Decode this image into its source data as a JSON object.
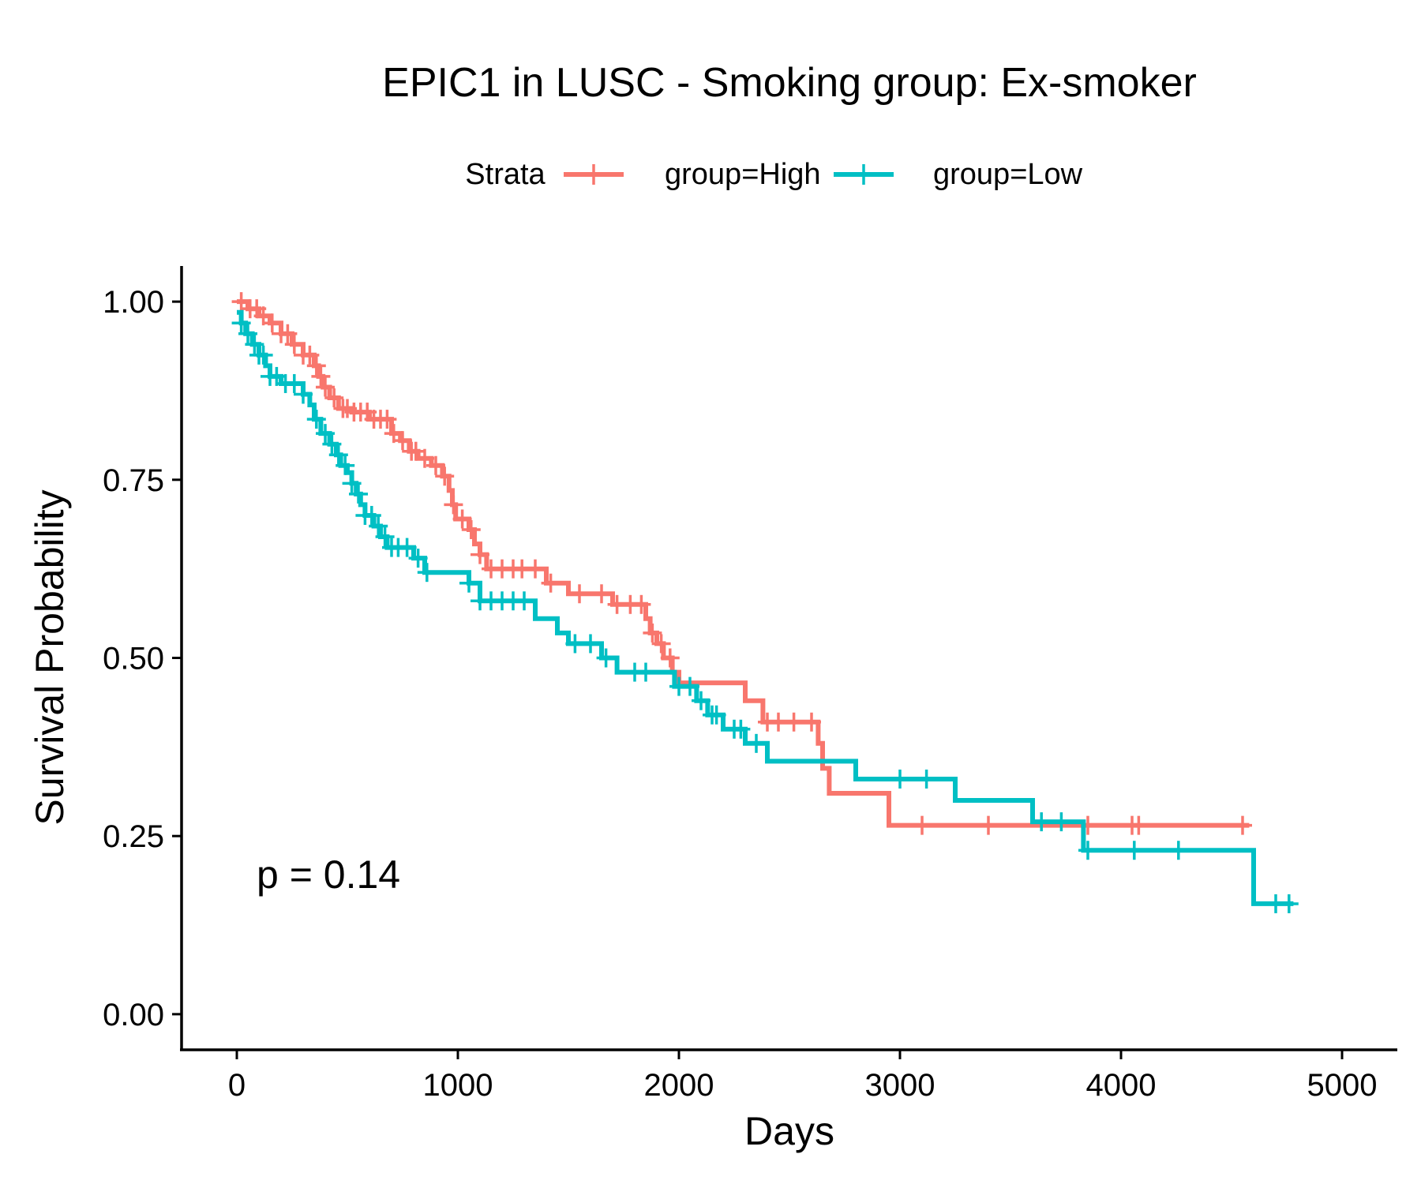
{
  "chart_data": {
    "type": "line",
    "subtype": "kaplan-meier survival curve",
    "title": "EPIC1 in LUSC - Smoking group: Ex-smoker",
    "xlabel": "Days",
    "ylabel": "Survival Probability",
    "xlim": [
      -250,
      5250
    ],
    "ylim": [
      -0.05,
      1.05
    ],
    "x_ticks": [
      0,
      1000,
      2000,
      3000,
      4000,
      5000
    ],
    "x_tick_labels": [
      "0",
      "1000",
      "2000",
      "3000",
      "4000",
      "5000"
    ],
    "y_ticks": [
      0,
      0.25,
      0.5,
      0.75,
      1.0
    ],
    "y_tick_labels": [
      "0.00",
      "0.25",
      "0.50",
      "0.75",
      "1.00"
    ],
    "grid": false,
    "legend": {
      "title": "Strata",
      "position": "top",
      "entries": [
        "group=High",
        "group=Low"
      ]
    },
    "annotation": "p = 0.14",
    "series": [
      {
        "name": "group=High",
        "color": "#F8766D",
        "steps": [
          [
            0,
            1.0
          ],
          [
            50,
            0.99
          ],
          [
            100,
            0.98
          ],
          [
            150,
            0.97
          ],
          [
            200,
            0.955
          ],
          [
            250,
            0.94
          ],
          [
            300,
            0.925
          ],
          [
            350,
            0.91
          ],
          [
            370,
            0.895
          ],
          [
            390,
            0.88
          ],
          [
            420,
            0.865
          ],
          [
            460,
            0.85
          ],
          [
            520,
            0.845
          ],
          [
            600,
            0.835
          ],
          [
            700,
            0.815
          ],
          [
            740,
            0.805
          ],
          [
            780,
            0.79
          ],
          [
            820,
            0.78
          ],
          [
            880,
            0.77
          ],
          [
            930,
            0.755
          ],
          [
            960,
            0.735
          ],
          [
            975,
            0.715
          ],
          [
            990,
            0.695
          ],
          [
            1050,
            0.68
          ],
          [
            1075,
            0.66
          ],
          [
            1100,
            0.645
          ],
          [
            1130,
            0.625
          ],
          [
            1400,
            0.605
          ],
          [
            1500,
            0.59
          ],
          [
            1700,
            0.575
          ],
          [
            1850,
            0.555
          ],
          [
            1870,
            0.535
          ],
          [
            1900,
            0.52
          ],
          [
            1930,
            0.5
          ],
          [
            1970,
            0.48
          ],
          [
            2000,
            0.465
          ],
          [
            2300,
            0.44
          ],
          [
            2380,
            0.41
          ],
          [
            2630,
            0.38
          ],
          [
            2650,
            0.345
          ],
          [
            2680,
            0.31
          ],
          [
            2950,
            0.265
          ]
        ],
        "end_x": 4580,
        "censor_x": [
          20,
          60,
          90,
          120,
          160,
          200,
          230,
          260,
          300,
          330,
          360,
          380,
          400,
          440,
          480,
          500,
          530,
          560,
          590,
          620,
          650,
          680,
          710,
          750,
          790,
          810,
          850,
          900,
          940,
          980,
          1020,
          1060,
          1100,
          1150,
          1200,
          1250,
          1290,
          1350,
          1420,
          1550,
          1650,
          1720,
          1780,
          1830,
          1880,
          1920,
          1960,
          2400,
          2450,
          2520,
          2600,
          3100,
          3400,
          3850,
          4050,
          4080,
          4550
        ]
      },
      {
        "name": "group=Low",
        "color": "#00BFC4",
        "steps": [
          [
            0,
            0.985
          ],
          [
            20,
            0.97
          ],
          [
            40,
            0.955
          ],
          [
            70,
            0.94
          ],
          [
            100,
            0.925
          ],
          [
            130,
            0.91
          ],
          [
            150,
            0.895
          ],
          [
            200,
            0.885
          ],
          [
            300,
            0.87
          ],
          [
            330,
            0.855
          ],
          [
            350,
            0.835
          ],
          [
            380,
            0.815
          ],
          [
            420,
            0.8
          ],
          [
            450,
            0.785
          ],
          [
            470,
            0.77
          ],
          [
            500,
            0.76
          ],
          [
            520,
            0.745
          ],
          [
            540,
            0.73
          ],
          [
            560,
            0.715
          ],
          [
            580,
            0.7
          ],
          [
            620,
            0.685
          ],
          [
            650,
            0.67
          ],
          [
            680,
            0.655
          ],
          [
            800,
            0.64
          ],
          [
            850,
            0.62
          ],
          [
            1050,
            0.605
          ],
          [
            1100,
            0.58
          ],
          [
            1350,
            0.555
          ],
          [
            1450,
            0.535
          ],
          [
            1500,
            0.52
          ],
          [
            1650,
            0.5
          ],
          [
            1720,
            0.48
          ],
          [
            1980,
            0.46
          ],
          [
            2080,
            0.44
          ],
          [
            2130,
            0.42
          ],
          [
            2200,
            0.4
          ],
          [
            2300,
            0.38
          ],
          [
            2400,
            0.355
          ],
          [
            2800,
            0.33
          ],
          [
            3250,
            0.3
          ],
          [
            3600,
            0.27
          ],
          [
            3830,
            0.23
          ],
          [
            4600,
            0.155
          ]
        ],
        "end_x": 4780,
        "censor_x": [
          20,
          50,
          80,
          100,
          120,
          150,
          180,
          220,
          260,
          300,
          360,
          400,
          430,
          460,
          490,
          520,
          550,
          580,
          610,
          640,
          670,
          700,
          730,
          770,
          820,
          860,
          1050,
          1100,
          1150,
          1200,
          1250,
          1300,
          1530,
          1600,
          1670,
          1800,
          1850,
          2000,
          2050,
          2100,
          2150,
          2170,
          2250,
          2280,
          2350,
          3000,
          3120,
          3640,
          3730,
          3850,
          4060,
          4260,
          4700,
          4760
        ]
      }
    ]
  }
}
